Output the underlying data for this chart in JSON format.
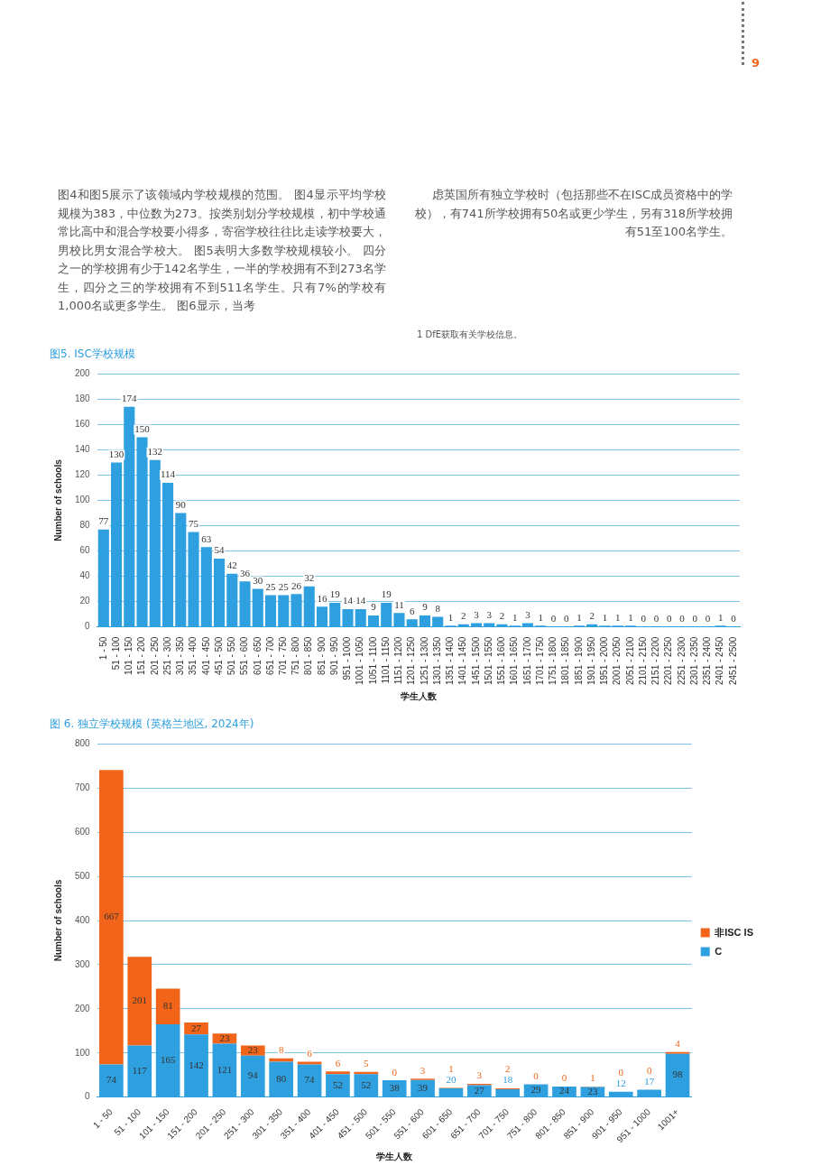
{
  "chart_data": [
    {
      "type": "bar",
      "title": "图5. ISC学校规模",
      "xlabel": "学生人数",
      "ylabel": "Number of schools",
      "annotations": [
        "9",
        "图4和图5展示了该领域内学校规模的范围。 图4显示平均学校规模为383，中位数为273。按类别划分学校规模，初中学校通常比高中和混合学校要小得多，寄宿学校往往比走读学校要大，男校比男女混合学校大。 图5表明大多数学校规模较小。 四分之一的学校拥有少于142名学生，一半的学校拥有不到273名学生，四分之三的学校拥有不到511名学生。只有7%的学校有1,000名或更多学生。 图6显示，当考",
        "虑英国所有独立学校时（包括那些不在ISC成员资格中的学校），有741所学校拥有50名或更少学生，另有318所学校拥有51至100名学生。",
        "1 DfE获取有关学校信息。"
      ],
      "categories": [
        "1 - 50",
        "51 - 100",
        "101 - 150",
        "151 - 200",
        "201 - 250",
        "251 - 300",
        "301 - 350",
        "351 - 400",
        "401 - 450",
        "451 - 500",
        "501 - 550",
        "551 - 600",
        "601 - 650",
        "651 - 700",
        "701 - 750",
        "751 - 800",
        "801 - 850",
        "851 - 900",
        "901 - 950",
        "951 - 1000",
        "1001 - 1050",
        "1051 - 1100",
        "1101 - 1150",
        "1151 - 1200",
        "1201 - 1250",
        "1251 - 1300",
        "1301 - 1350",
        "1351 - 1400",
        "1401 - 1450",
        "1451 - 1500",
        "1501 - 1550",
        "1551 - 1600",
        "1601 - 1650",
        "1651 - 1700",
        "1701 - 1750",
        "1751 - 1800",
        "1801 - 1850",
        "1851 - 1900",
        "1901 - 1950",
        "1951 - 2000",
        "2001 - 2050",
        "2051 - 2100",
        "2101 - 2150",
        "2151 - 2200",
        "2201 - 2250",
        "2251 - 2300",
        "2301 - 2350",
        "2351 - 2400",
        "2401 - 2450",
        "2451 - 2500"
      ],
      "values": [
        77,
        130,
        174,
        150,
        132,
        114,
        90,
        75,
        63,
        54,
        42,
        36,
        30,
        25,
        25,
        26,
        32,
        16,
        19,
        14,
        14,
        9,
        19,
        11,
        6,
        9,
        8,
        1,
        2,
        3,
        3,
        2,
        1,
        3,
        1,
        0,
        0,
        1,
        2,
        1,
        1,
        1,
        0,
        0,
        0,
        0,
        0,
        0,
        1,
        0
      ],
      "color": "#2e9fdf",
      "ylim": [
        0,
        200
      ],
      "yticks": [
        0,
        20,
        40,
        60,
        80,
        100,
        120,
        140,
        160,
        180,
        200
      ],
      "grid": "y",
      "data_labels": true
    },
    {
      "type": "bar",
      "title": "图 6. 独立学校规模 (英格兰地区, 2024年)",
      "xlabel": "学生人数",
      "ylabel": "Number of schools",
      "categories": [
        "1 - 50",
        "51 - 100",
        "101 - 150",
        "151 - 200",
        "201 - 250",
        "251 - 300",
        "301 - 350",
        "351 - 400",
        "401 - 450",
        "451 - 500",
        "501 - 550",
        "551 - 600",
        "601 - 650",
        "651 - 700",
        "701 - 750",
        "751 - 800",
        "801 - 850",
        "851 - 900",
        "901 - 950",
        "951 - 1000",
        "1001+"
      ],
      "series": [
        {
          "name": "C",
          "color": "#2e9fdf",
          "values": [
            74,
            117,
            165,
            142,
            121,
            94,
            80,
            74,
            52,
            52,
            38,
            39,
            20,
            27,
            18,
            29,
            24,
            23,
            12,
            17,
            98
          ]
        },
        {
          "name": "非ISC IS",
          "color": "#f26419",
          "values": [
            667,
            201,
            81,
            27,
            23,
            23,
            8,
            6,
            6,
            5,
            0,
            3,
            1,
            3,
            2,
            0,
            0,
            1,
            0,
            0,
            4
          ]
        }
      ],
      "stacked": true,
      "ylim": [
        0,
        800
      ],
      "yticks": [
        0,
        100,
        200,
        300,
        400,
        500,
        600,
        700,
        800
      ],
      "grid": "y",
      "legend": "right",
      "data_labels": true
    }
  ]
}
